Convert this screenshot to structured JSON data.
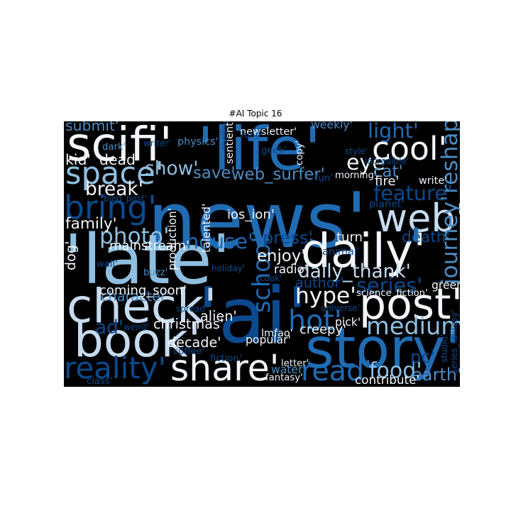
{
  "title": "#AI Topic 16",
  "colors": {
    "background": "#000000",
    "dark_blue": "#08306b",
    "navy": "#0b4a8e",
    "mid_blue": "#1f6cb4",
    "steel_blue": "#4c8dc4",
    "sky_blue": "#8fbfe0",
    "pale_blue": "#c6dbef",
    "white": "#f2f6fb"
  },
  "words": [
    {
      "text": "news'",
      "size": 9.0,
      "color": "mid_blue",
      "rot": 0
    },
    {
      "text": "'ai'",
      "size": 9.0,
      "color": "navy",
      "rot": 0
    },
    {
      "text": "'late'",
      "size": 8.0,
      "color": "sky_blue",
      "rot": 0
    },
    {
      "text": "'life'",
      "size": 7.0,
      "color": "mid_blue",
      "rot": 0
    },
    {
      "text": "story'",
      "size": 6.5,
      "color": "mid_blue",
      "rot": 0
    },
    {
      "text": "scifi'",
      "size": 5.5,
      "color": "white",
      "rot": 0
    },
    {
      "text": "daily'",
      "size": 5.5,
      "color": "white",
      "rot": 0
    },
    {
      "text": "check'",
      "size": 5.5,
      "color": "pale_blue",
      "rot": 0
    },
    {
      "text": "book'",
      "size": 5.5,
      "color": "pale_blue",
      "rot": 0
    },
    {
      "text": "post'",
      "size": 5.0,
      "color": "white",
      "rot": 0
    },
    {
      "text": "web'",
      "size": 4.5,
      "color": "pale_blue",
      "rot": 0
    },
    {
      "text": "share'",
      "size": 4.2,
      "color": "white",
      "rot": 0
    },
    {
      "text": "cool'",
      "size": 3.8,
      "color": "white",
      "rot": 0
    },
    {
      "text": "bring'",
      "size": 3.8,
      "color": "navy",
      "rot": 0
    },
    {
      "text": "space'",
      "size": 3.6,
      "color": "sky_blue",
      "rot": 0
    },
    {
      "text": "reality'",
      "size": 3.5,
      "color": "navy",
      "rot": 0
    },
    {
      "text": "hot'",
      "size": 3.3,
      "color": "mid_blue",
      "rot": 0
    },
    {
      "text": "read'",
      "size": 3.3,
      "color": "mid_blue",
      "rot": 0
    },
    {
      "text": "medium'",
      "size": 2.8,
      "color": "sky_blue",
      "rot": 0
    },
    {
      "text": "school'",
      "size": 2.8,
      "color": "mid_blue",
      "rot": -90
    },
    {
      "text": "journey'",
      "size": 2.6,
      "color": "steel_blue",
      "rot": -90
    },
    {
      "text": "reshape'",
      "size": 2.6,
      "color": "steel_blue",
      "rot": -90
    },
    {
      "text": "photo'",
      "size": 2.6,
      "color": "sky_blue",
      "rot": 0
    },
    {
      "text": "hype'",
      "size": 2.6,
      "color": "white",
      "rot": 0
    },
    {
      "text": "food'",
      "size": 2.5,
      "color": "sky_blue",
      "rot": 0
    },
    {
      "text": "eye'",
      "size": 2.5,
      "color": "white",
      "rot": 0
    },
    {
      "text": "light'",
      "size": 2.4,
      "color": "mid_blue",
      "rot": 0
    },
    {
      "text": "series'",
      "size": 2.4,
      "color": "navy",
      "rot": 0
    },
    {
      "text": "house'",
      "size": 2.4,
      "color": "mid_blue",
      "rot": 0
    },
    {
      "text": "feature'",
      "size": 2.4,
      "color": "navy",
      "rot": 0
    },
    {
      "text": "break'",
      "size": 2.2,
      "color": "white",
      "rot": 0
    },
    {
      "text": "show'",
      "size": 2.2,
      "color": "sky_blue",
      "rot": 0
    },
    {
      "text": "daily_thank'",
      "size": 2.2,
      "color": "pale_blue",
      "rot": 0
    },
    {
      "text": "ad'",
      "size": 2.2,
      "color": "navy",
      "rot": 0
    },
    {
      "text": "earth'",
      "size": 2.0,
      "color": "steel_blue",
      "rot": 0
    },
    {
      "text": "pc'",
      "size": 2.0,
      "color": "navy",
      "rot": 0
    },
    {
      "text": "press'",
      "size": 2.0,
      "color": "navy",
      "rot": 0
    },
    {
      "text": "save'",
      "size": 1.9,
      "color": "steel_blue",
      "rot": 0
    },
    {
      "text": "cat'",
      "size": 1.9,
      "color": "steel_blue",
      "rot": 0
    },
    {
      "text": "web_surfer'",
      "size": 1.9,
      "color": "steel_blue",
      "rot": 0
    },
    {
      "text": "enjoy'",
      "size": 1.9,
      "color": "white",
      "rot": 0
    },
    {
      "text": "death'",
      "size": 1.8,
      "color": "navy",
      "rot": 0
    },
    {
      "text": "family'",
      "size": 1.8,
      "color": "white",
      "rot": 0
    },
    {
      "text": "submit'",
      "size": 1.7,
      "color": "steel_blue",
      "rot": 0
    },
    {
      "text": "kid'",
      "size": 1.7,
      "color": "white",
      "rot": 0
    },
    {
      "text": "dead'",
      "size": 1.7,
      "color": "white",
      "rot": 0
    },
    {
      "text": "dog'",
      "size": 1.6,
      "color": "white",
      "rot": -90
    },
    {
      "text": "character'",
      "size": 1.6,
      "color": "steel_blue",
      "rot": 0
    },
    {
      "text": "author'",
      "size": 1.6,
      "color": "navy",
      "rot": 0
    },
    {
      "text": "creepy'",
      "size": 1.5,
      "color": "white",
      "rot": 0
    },
    {
      "text": "decade'",
      "size": 1.6,
      "color": "white",
      "rot": 0
    },
    {
      "text": "alien'",
      "size": 1.6,
      "color": "white",
      "rot": 0
    },
    {
      "text": "christmas'",
      "size": 1.6,
      "color": "white",
      "rot": 0
    },
    {
      "text": "fire'",
      "size": 1.5,
      "color": "white",
      "rot": 0
    },
    {
      "text": "turn'",
      "size": 1.5,
      "color": "white",
      "rot": 0
    },
    {
      "text": "ios_ion'",
      "size": 1.5,
      "color": "white",
      "rot": 0
    },
    {
      "text": "coming_soon'",
      "size": 1.5,
      "color": "white",
      "rot": 0
    },
    {
      "text": "mainstream'",
      "size": 1.5,
      "color": "white",
      "rot": 0
    },
    {
      "text": "radio'",
      "size": 1.4,
      "color": "white",
      "rot": 0
    },
    {
      "text": "contribute'",
      "size": 1.4,
      "color": "white",
      "rot": 0
    },
    {
      "text": "popular'",
      "size": 1.3,
      "color": "white",
      "rot": 0
    },
    {
      "text": "green'",
      "size": 1.3,
      "color": "white",
      "rot": 0
    },
    {
      "text": "pick'",
      "size": 1.3,
      "color": "white",
      "rot": 0
    },
    {
      "text": "production'",
      "size": 1.3,
      "color": "white",
      "rot": -90
    },
    {
      "text": "talented'",
      "size": 1.3,
      "color": "white",
      "rot": -90
    },
    {
      "text": "sentient'",
      "size": 1.2,
      "color": "white",
      "rot": -90
    },
    {
      "text": "write'",
      "size": 1.2,
      "color": "white",
      "rot": 0
    },
    {
      "text": "weekly'",
      "size": 1.3,
      "color": "steel_blue",
      "rot": 0
    },
    {
      "text": "newsletter'",
      "size": 1.2,
      "color": "white",
      "rot": 0
    },
    {
      "text": "lmfao'",
      "size": 1.2,
      "color": "white",
      "rot": 0
    },
    {
      "text": "water'",
      "size": 1.3,
      "color": "steel_blue",
      "rot": 0
    },
    {
      "text": "fantasy'",
      "size": 1.1,
      "color": "white",
      "rot": 0
    },
    {
      "text": "letter'",
      "size": 1.1,
      "color": "white",
      "rot": 0
    },
    {
      "text": "science_fiction'",
      "size": 1.1,
      "color": "white",
      "rot": 0
    },
    {
      "text": "morning'",
      "size": 1.1,
      "color": "white",
      "rot": 0
    },
    {
      "text": "copy'",
      "size": 1.1,
      "color": "white",
      "rot": -90
    },
    {
      "text": "physics'",
      "size": 1.2,
      "color": "steel_blue",
      "rot": 0
    },
    {
      "text": "reading'",
      "size": 1.0,
      "color": "navy",
      "rot": -90
    },
    {
      "text": "geek'",
      "size": 1.1,
      "color": "navy",
      "rot": 0
    },
    {
      "text": "fun'",
      "size": 1.1,
      "color": "navy",
      "rot": 0
    },
    {
      "text": "style'",
      "size": 1.0,
      "color": "navy",
      "rot": 0
    },
    {
      "text": "incredible'",
      "size": 1.0,
      "color": "navy",
      "rot": 0
    },
    {
      "text": "planet'",
      "size": 1.2,
      "color": "navy",
      "rot": 0
    },
    {
      "text": "animal'",
      "size": 1.2,
      "color": "navy",
      "rot": 0
    },
    {
      "text": "dark'",
      "size": 1.1,
      "color": "steel_blue",
      "rot": 0
    },
    {
      "text": "blog_post'",
      "size": 1.0,
      "color": "navy",
      "rot": 0
    },
    {
      "text": "wall'",
      "size": 1.1,
      "color": "navy",
      "rot": 0
    },
    {
      "text": "buzz'",
      "size": 1.1,
      "color": "steel_blue",
      "rot": 0
    },
    {
      "text": "holiday'",
      "size": 1.0,
      "color": "navy",
      "rot": 0
    },
    {
      "text": "cook'",
      "size": 1.0,
      "color": "navy",
      "rot": 0
    },
    {
      "text": "spread'",
      "size": 1.0,
      "color": "navy",
      "rot": 0
    },
    {
      "text": "weird'",
      "size": 1.0,
      "color": "navy",
      "rot": 0
    },
    {
      "text": "coffee'",
      "size": 1.1,
      "color": "navy",
      "rot": 0
    },
    {
      "text": "fiction'",
      "size": 1.1,
      "color": "navy",
      "rot": 0
    },
    {
      "text": "universe'",
      "size": 1.0,
      "color": "navy",
      "rot": 0
    },
    {
      "text": "class'",
      "size": 1.1,
      "color": "navy",
      "rot": 0
    },
    {
      "text": "fund'",
      "size": 1.0,
      "color": "navy",
      "rot": 0
    },
    {
      "text": "writer'",
      "size": 1.0,
      "color": "navy",
      "rot": 0
    },
    {
      "text": "studio'",
      "size": 1.0,
      "color": "navy",
      "rot": -90
    },
    {
      "text": "series_fantasy'",
      "size": 1.0,
      "color": "navy",
      "rot": -90
    },
    {
      "text": "'",
      "size": 6.0,
      "color": "mid_blue",
      "rot": 0
    }
  ]
}
